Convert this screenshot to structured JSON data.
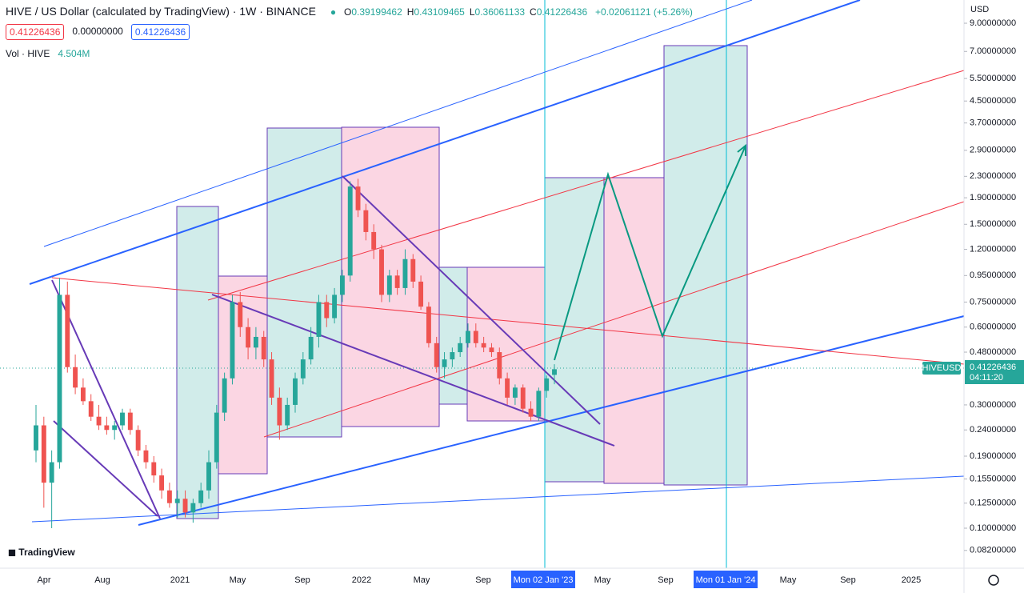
{
  "header": {
    "title": "HIVE / US Dollar (calculated by TradingView) · 1W · BINANCE",
    "ohlc": [
      {
        "key": "O",
        "value": "0.39199462"
      },
      {
        "key": "H",
        "value": "0.43109465"
      },
      {
        "key": "L",
        "value": "0.36061133"
      },
      {
        "key": "C",
        "value": "0.41226436"
      }
    ],
    "change": "+0.02061121 (+5.26%)",
    "boxes": [
      "0.41226436",
      "0.00000000",
      "0.41226436"
    ],
    "volume_label": "Vol · HIVE",
    "volume_value": "4.504M"
  },
  "currency": "USD",
  "price_tag": {
    "symbol": "HIVEUSD",
    "price": "0.41226436",
    "countdown": "04:11:20"
  },
  "logo": "TradingView",
  "chart_data": {
    "type": "candlestick",
    "log": true,
    "up_color": "#26a69a",
    "down_color": "#ef5350",
    "ylim": [
      0.07,
      11.07
    ],
    "yticks": [
      {
        "value": 9,
        "label": "9.00000000"
      },
      {
        "value": 7,
        "label": "7.00000000"
      },
      {
        "value": 5.5,
        "label": "5.50000000"
      },
      {
        "value": 4.5,
        "label": "4.50000000"
      },
      {
        "value": 3.7,
        "label": "3.70000000"
      },
      {
        "value": 2.9,
        "label": "2.90000000"
      },
      {
        "value": 2.3,
        "label": "2.30000000"
      },
      {
        "value": 1.9,
        "label": "1.90000000"
      },
      {
        "value": 1.5,
        "label": "1.50000000"
      },
      {
        "value": 1.2,
        "label": "1.20000000"
      },
      {
        "value": 0.95,
        "label": "0.95000000"
      },
      {
        "value": 0.75,
        "label": "0.75000000"
      },
      {
        "value": 0.6,
        "label": "0.60000000"
      },
      {
        "value": 0.48,
        "label": "0.48000000"
      },
      {
        "value": 0.3,
        "label": "0.30000000"
      },
      {
        "value": 0.24,
        "label": "0.24000000"
      },
      {
        "value": 0.19,
        "label": "0.19000000"
      },
      {
        "value": 0.155,
        "label": "0.15500000"
      },
      {
        "value": 0.125,
        "label": "0.12500000"
      },
      {
        "value": 0.1,
        "label": "0.10000000"
      },
      {
        "value": 0.082,
        "label": "0.08200000"
      }
    ],
    "xticks": [
      "Apr",
      "Aug",
      "2021",
      "May",
      "Sep",
      "2022",
      "May",
      "Sep",
      "Mon 02 Jan '23",
      "May",
      "Sep",
      "Mon 01 Jan '24",
      "May",
      "Sep",
      "2025"
    ],
    "ohlc": [
      [
        0.2,
        0.3,
        0.18,
        0.25
      ],
      [
        0.25,
        0.27,
        0.12,
        0.15
      ],
      [
        0.15,
        0.2,
        0.1,
        0.18
      ],
      [
        0.18,
        0.93,
        0.17,
        0.8
      ],
      [
        0.8,
        0.9,
        0.4,
        0.42
      ],
      [
        0.42,
        0.47,
        0.33,
        0.35
      ],
      [
        0.35,
        0.38,
        0.3,
        0.31
      ],
      [
        0.31,
        0.33,
        0.26,
        0.27
      ],
      [
        0.27,
        0.3,
        0.24,
        0.25
      ],
      [
        0.25,
        0.27,
        0.23,
        0.24
      ],
      [
        0.24,
        0.26,
        0.22,
        0.25
      ],
      [
        0.25,
        0.29,
        0.24,
        0.28
      ],
      [
        0.28,
        0.29,
        0.23,
        0.24
      ],
      [
        0.24,
        0.25,
        0.19,
        0.2
      ],
      [
        0.2,
        0.21,
        0.17,
        0.18
      ],
      [
        0.18,
        0.19,
        0.15,
        0.16
      ],
      [
        0.16,
        0.17,
        0.13,
        0.14
      ],
      [
        0.14,
        0.15,
        0.12,
        0.125
      ],
      [
        0.125,
        0.14,
        0.11,
        0.13
      ],
      [
        0.13,
        0.14,
        0.11,
        0.115
      ],
      [
        0.115,
        0.13,
        0.105,
        0.125
      ],
      [
        0.125,
        0.15,
        0.12,
        0.14
      ],
      [
        0.14,
        0.2,
        0.13,
        0.18
      ],
      [
        0.18,
        0.3,
        0.17,
        0.28
      ],
      [
        0.28,
        0.4,
        0.26,
        0.38
      ],
      [
        0.38,
        0.8,
        0.36,
        0.75
      ],
      [
        0.75,
        0.82,
        0.55,
        0.6
      ],
      [
        0.6,
        0.65,
        0.45,
        0.5
      ],
      [
        0.5,
        0.6,
        0.45,
        0.55
      ],
      [
        0.55,
        0.58,
        0.42,
        0.45
      ],
      [
        0.45,
        0.48,
        0.3,
        0.32
      ],
      [
        0.32,
        0.35,
        0.22,
        0.25
      ],
      [
        0.25,
        0.32,
        0.24,
        0.3
      ],
      [
        0.3,
        0.4,
        0.28,
        0.38
      ],
      [
        0.38,
        0.48,
        0.36,
        0.45
      ],
      [
        0.45,
        0.6,
        0.43,
        0.55
      ],
      [
        0.55,
        0.8,
        0.5,
        0.75
      ],
      [
        0.75,
        0.8,
        0.6,
        0.65
      ],
      [
        0.65,
        0.85,
        0.62,
        0.8
      ],
      [
        0.8,
        1.0,
        0.75,
        0.95
      ],
      [
        0.95,
        2.2,
        0.9,
        2.1
      ],
      [
        2.1,
        2.25,
        1.6,
        1.7
      ],
      [
        1.7,
        1.8,
        1.3,
        1.4
      ],
      [
        1.4,
        1.5,
        1.1,
        1.2
      ],
      [
        1.2,
        1.25,
        0.75,
        0.8
      ],
      [
        0.8,
        1.0,
        0.75,
        0.95
      ],
      [
        0.95,
        1.0,
        0.8,
        0.85
      ],
      [
        0.85,
        1.2,
        0.8,
        1.1
      ],
      [
        1.1,
        1.15,
        0.85,
        0.9
      ],
      [
        0.9,
        0.95,
        0.7,
        0.72
      ],
      [
        0.72,
        0.75,
        0.5,
        0.52
      ],
      [
        0.52,
        0.55,
        0.4,
        0.42
      ],
      [
        0.42,
        0.48,
        0.38,
        0.45
      ],
      [
        0.45,
        0.5,
        0.42,
        0.48
      ],
      [
        0.48,
        0.55,
        0.46,
        0.52
      ],
      [
        0.52,
        0.62,
        0.5,
        0.58
      ],
      [
        0.58,
        0.62,
        0.5,
        0.52
      ],
      [
        0.52,
        0.55,
        0.48,
        0.5
      ],
      [
        0.5,
        0.52,
        0.46,
        0.48
      ],
      [
        0.48,
        0.5,
        0.36,
        0.38
      ],
      [
        0.38,
        0.4,
        0.3,
        0.32
      ],
      [
        0.32,
        0.36,
        0.3,
        0.35
      ],
      [
        0.35,
        0.36,
        0.28,
        0.29
      ],
      [
        0.29,
        0.31,
        0.26,
        0.27
      ],
      [
        0.27,
        0.35,
        0.26,
        0.34
      ],
      [
        0.34,
        0.39,
        0.32,
        0.38
      ],
      [
        0.39199462,
        0.43109465,
        0.36061133,
        0.41226436
      ]
    ]
  }
}
